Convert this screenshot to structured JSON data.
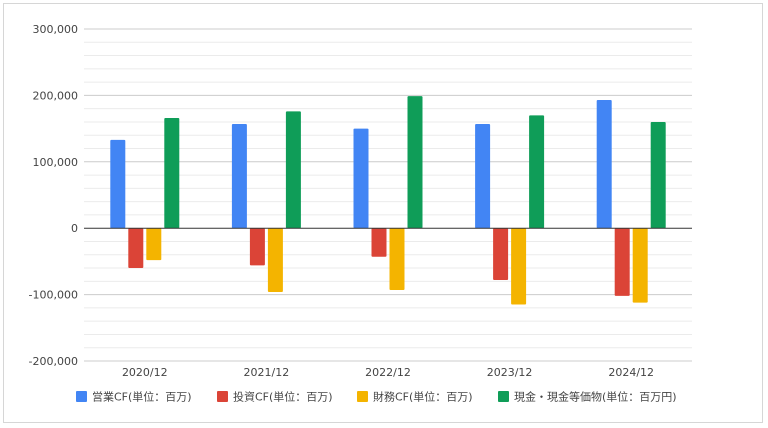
{
  "chart_data": {
    "type": "bar",
    "categories": [
      "2020/12",
      "2021/12",
      "2022/12",
      "2023/12",
      "2024/12"
    ],
    "series": [
      {
        "name": "営業CF(単位：百万)",
        "color": "#4285f4",
        "values": [
          133000,
          157000,
          150000,
          157000,
          193000
        ]
      },
      {
        "name": "投資CF(単位：百万)",
        "color": "#db4437",
        "values": [
          -60000,
          -56000,
          -43000,
          -78000,
          -102000
        ]
      },
      {
        "name": "財務CF(単位：百万)",
        "color": "#f4b400",
        "values": [
          -48000,
          -96000,
          -93000,
          -115000,
          -112000
        ]
      },
      {
        "name": "現金・現金等価物(単位：百万円)",
        "color": "#0f9d58",
        "values": [
          166000,
          176000,
          199000,
          170000,
          160000
        ]
      }
    ],
    "ylim": [
      -200000,
      300000
    ],
    "yticks": [
      "300,000",
      "200,000",
      "100,000",
      "0",
      "-100,000",
      "-200,000"
    ],
    "grid": true,
    "legend": "bottom",
    "title": "",
    "xlabel": "",
    "ylabel": ""
  }
}
